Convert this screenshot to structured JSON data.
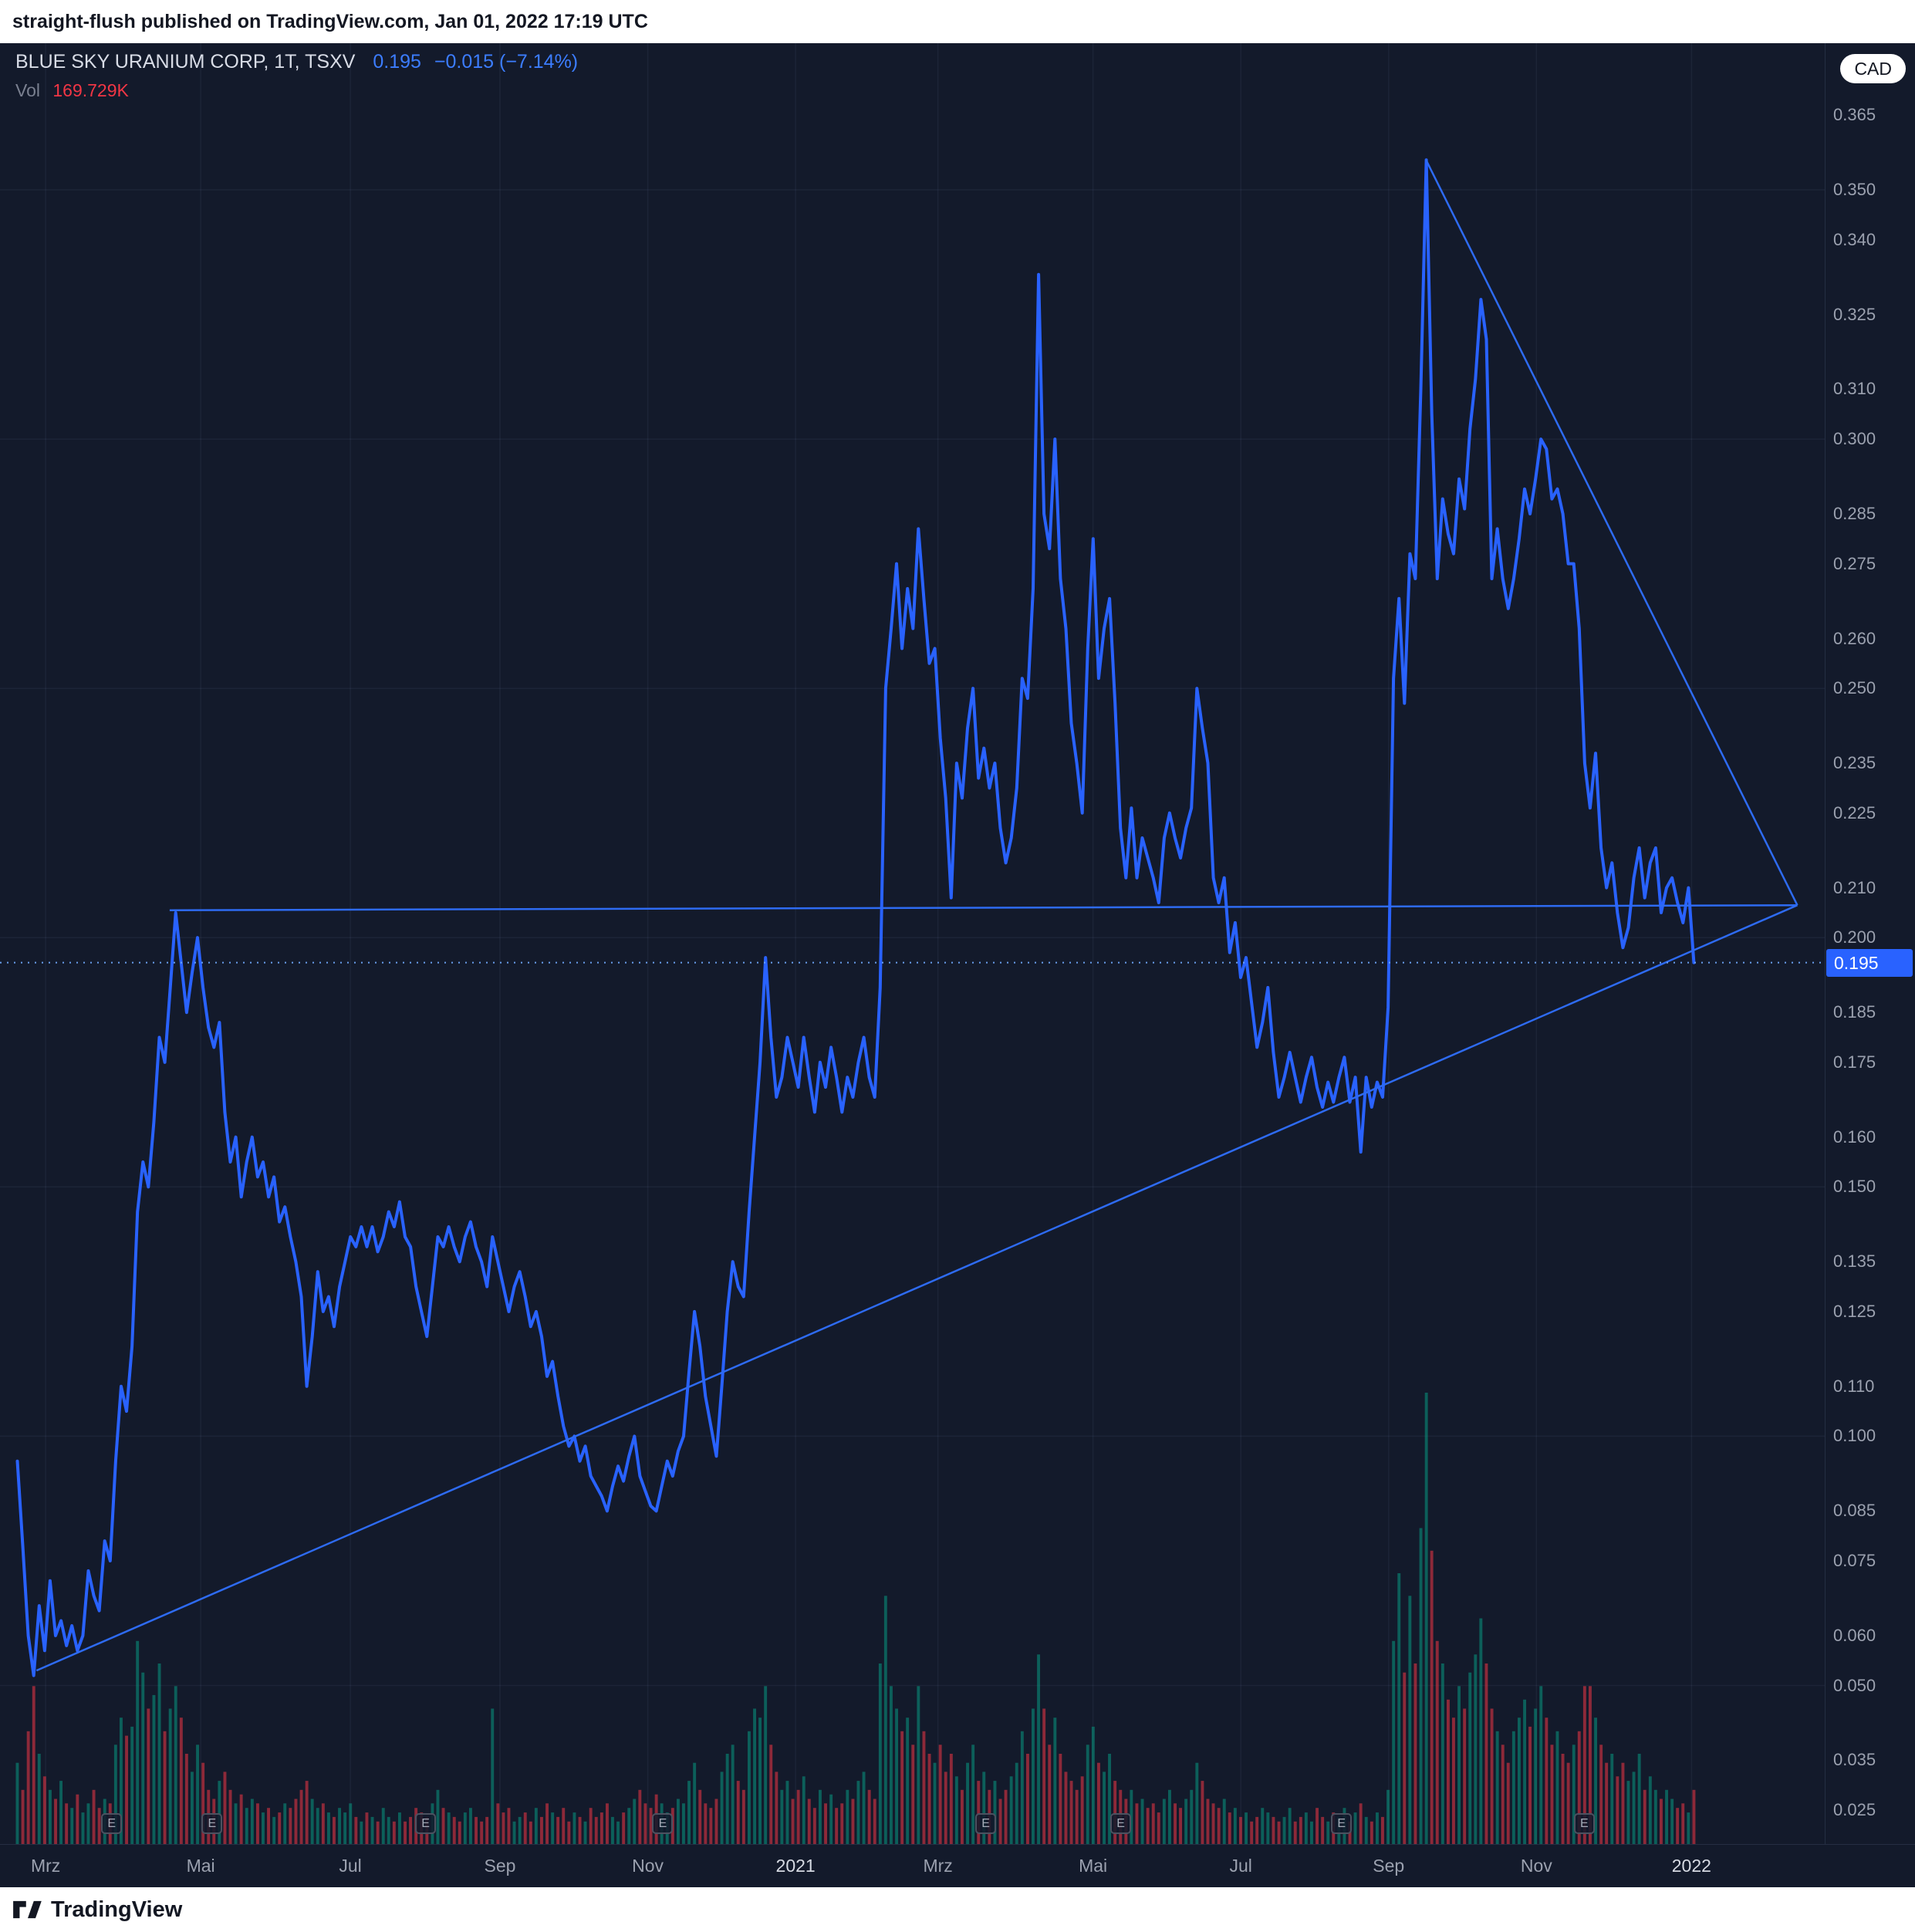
{
  "banner": {
    "author": "straight-flush",
    "rest": "published on TradingView.com, Jan 01, 2022 17:19 UTC"
  },
  "legend": {
    "symbol": "BLUE SKY URANIUM CORP, 1T, TSXV",
    "price": "0.195",
    "change": "−0.015 (−7.14%)",
    "vol_label": "Vol",
    "vol_value": "169.729K"
  },
  "axis": {
    "currency": "CAD",
    "last_price": "0.195",
    "price_labels": [
      "0.365",
      "0.350",
      "0.340",
      "0.325",
      "0.310",
      "0.300",
      "0.285",
      "0.275",
      "0.260",
      "0.250",
      "0.235",
      "0.225",
      "0.210",
      "0.200",
      "0.185",
      "0.175",
      "0.160",
      "0.150",
      "0.135",
      "0.125",
      "0.110",
      "0.100",
      "0.085",
      "0.075",
      "0.060",
      "0.050",
      "0.035",
      "0.025"
    ],
    "months": [
      {
        "label": "Mrz",
        "x": 0.025,
        "year": false
      },
      {
        "label": "Mai",
        "x": 0.11,
        "year": false
      },
      {
        "label": "Jul",
        "x": 0.192,
        "year": false
      },
      {
        "label": "Sep",
        "x": 0.274,
        "year": false
      },
      {
        "label": "Nov",
        "x": 0.355,
        "year": false
      },
      {
        "label": "2021",
        "x": 0.436,
        "year": true
      },
      {
        "label": "Mrz",
        "x": 0.514,
        "year": false
      },
      {
        "label": "Mai",
        "x": 0.599,
        "year": false
      },
      {
        "label": "Jul",
        "x": 0.68,
        "year": false
      },
      {
        "label": "Sep",
        "x": 0.761,
        "year": false
      },
      {
        "label": "Nov",
        "x": 0.842,
        "year": false
      },
      {
        "label": "2022",
        "x": 0.927,
        "year": true
      }
    ],
    "earnings_label": "E",
    "earnings_x": [
      0.061,
      0.116,
      0.233,
      0.363,
      0.54,
      0.614,
      0.735,
      0.868
    ]
  },
  "footer": {
    "brand": "TradingView"
  },
  "chart_data": {
    "type": "line",
    "title": "BLUE SKY URANIUM CORP, 1T, TSXV",
    "symbol": "BLUE SKY URANIUM CORP",
    "exchange": "TSXV",
    "interval": "1T",
    "currency": "CAD",
    "last": 0.195,
    "change": -0.015,
    "change_pct": -7.14,
    "volume_display": "169.729K",
    "line_color": "#2962ff",
    "vol_up_color": "#089981",
    "vol_down_color": "#f23645",
    "ylim": [
      0.0182,
      0.3794
    ],
    "grid_prices": [
      0.05,
      0.1,
      0.15,
      0.2,
      0.25,
      0.3,
      0.35
    ],
    "x_start": 0.0095,
    "x_end": 0.9283,
    "last_price_line": 0.195,
    "trendlines": [
      {
        "x1": 0.02,
        "p1": 0.053,
        "x2": 0.985,
        "p2": 0.2065
      },
      {
        "x1": 0.093,
        "p1": 0.2055,
        "x2": 0.985,
        "p2": 0.2065
      },
      {
        "x1": 0.7815,
        "p1": 0.356,
        "x2": 0.985,
        "p2": 0.2065
      }
    ],
    "prices": [
      0.095,
      0.078,
      0.06,
      0.052,
      0.066,
      0.057,
      0.071,
      0.06,
      0.063,
      0.058,
      0.062,
      0.057,
      0.06,
      0.073,
      0.068,
      0.065,
      0.079,
      0.075,
      0.095,
      0.11,
      0.105,
      0.118,
      0.145,
      0.155,
      0.15,
      0.163,
      0.18,
      0.175,
      0.19,
      0.205,
      0.195,
      0.185,
      0.193,
      0.2,
      0.19,
      0.182,
      0.178,
      0.183,
      0.165,
      0.155,
      0.16,
      0.148,
      0.155,
      0.16,
      0.152,
      0.155,
      0.148,
      0.152,
      0.143,
      0.146,
      0.14,
      0.135,
      0.128,
      0.11,
      0.12,
      0.133,
      0.125,
      0.128,
      0.122,
      0.13,
      0.135,
      0.14,
      0.138,
      0.142,
      0.138,
      0.142,
      0.137,
      0.14,
      0.145,
      0.142,
      0.147,
      0.14,
      0.138,
      0.13,
      0.125,
      0.12,
      0.13,
      0.14,
      0.138,
      0.142,
      0.138,
      0.135,
      0.14,
      0.143,
      0.138,
      0.135,
      0.13,
      0.14,
      0.135,
      0.13,
      0.125,
      0.13,
      0.133,
      0.128,
      0.122,
      0.125,
      0.12,
      0.112,
      0.115,
      0.108,
      0.102,
      0.098,
      0.1,
      0.095,
      0.098,
      0.092,
      0.09,
      0.088,
      0.085,
      0.09,
      0.094,
      0.091,
      0.096,
      0.1,
      0.092,
      0.089,
      0.086,
      0.085,
      0.09,
      0.095,
      0.092,
      0.097,
      0.1,
      0.113,
      0.125,
      0.118,
      0.108,
      0.102,
      0.096,
      0.11,
      0.125,
      0.135,
      0.13,
      0.128,
      0.145,
      0.16,
      0.175,
      0.196,
      0.18,
      0.168,
      0.172,
      0.18,
      0.175,
      0.17,
      0.18,
      0.172,
      0.165,
      0.175,
      0.17,
      0.178,
      0.172,
      0.165,
      0.172,
      0.168,
      0.175,
      0.18,
      0.172,
      0.168,
      0.19,
      0.25,
      0.262,
      0.275,
      0.258,
      0.27,
      0.262,
      0.282,
      0.268,
      0.255,
      0.258,
      0.24,
      0.228,
      0.208,
      0.235,
      0.228,
      0.242,
      0.25,
      0.232,
      0.238,
      0.23,
      0.235,
      0.222,
      0.215,
      0.22,
      0.23,
      0.252,
      0.248,
      0.27,
      0.333,
      0.285,
      0.278,
      0.3,
      0.272,
      0.262,
      0.243,
      0.235,
      0.225,
      0.258,
      0.28,
      0.252,
      0.262,
      0.268,
      0.247,
      0.222,
      0.212,
      0.226,
      0.212,
      0.22,
      0.216,
      0.212,
      0.207,
      0.22,
      0.225,
      0.22,
      0.216,
      0.222,
      0.226,
      0.25,
      0.242,
      0.235,
      0.212,
      0.207,
      0.212,
      0.197,
      0.203,
      0.192,
      0.196,
      0.187,
      0.178,
      0.183,
      0.19,
      0.177,
      0.168,
      0.172,
      0.177,
      0.172,
      0.167,
      0.172,
      0.176,
      0.17,
      0.166,
      0.171,
      0.167,
      0.172,
      0.176,
      0.167,
      0.172,
      0.157,
      0.172,
      0.166,
      0.171,
      0.168,
      0.186,
      0.252,
      0.268,
      0.247,
      0.277,
      0.272,
      0.31,
      0.356,
      0.305,
      0.272,
      0.288,
      0.281,
      0.277,
      0.292,
      0.286,
      0.302,
      0.312,
      0.328,
      0.32,
      0.272,
      0.282,
      0.272,
      0.266,
      0.272,
      0.28,
      0.29,
      0.285,
      0.292,
      0.3,
      0.298,
      0.288,
      0.29,
      0.285,
      0.275,
      0.275,
      0.262,
      0.235,
      0.226,
      0.237,
      0.218,
      0.21,
      0.215,
      0.205,
      0.198,
      0.202,
      0.212,
      0.218,
      0.208,
      0.215,
      0.218,
      0.205,
      0.21,
      0.212,
      0.207,
      0.203,
      0.21,
      0.195
    ],
    "volumes_rel": [
      18,
      12,
      25,
      35,
      20,
      15,
      12,
      10,
      14,
      9,
      8,
      11,
      7,
      9,
      12,
      8,
      10,
      9,
      22,
      28,
      24,
      26,
      45,
      38,
      30,
      33,
      40,
      25,
      30,
      35,
      28,
      20,
      16,
      22,
      18,
      12,
      10,
      14,
      16,
      12,
      9,
      11,
      8,
      10,
      9,
      7,
      8,
      6,
      7,
      9,
      8,
      10,
      12,
      14,
      10,
      8,
      9,
      7,
      6,
      8,
      7,
      9,
      6,
      5,
      7,
      6,
      5,
      8,
      6,
      5,
      7,
      5,
      6,
      8,
      7,
      6,
      9,
      12,
      8,
      7,
      6,
      5,
      7,
      8,
      6,
      5,
      6,
      30,
      9,
      7,
      8,
      5,
      6,
      7,
      5,
      8,
      6,
      9,
      7,
      6,
      8,
      5,
      7,
      6,
      5,
      8,
      6,
      7,
      9,
      6,
      5,
      7,
      8,
      10,
      12,
      9,
      8,
      11,
      9,
      7,
      8,
      10,
      9,
      14,
      18,
      12,
      9,
      8,
      10,
      16,
      20,
      22,
      14,
      12,
      25,
      30,
      28,
      35,
      22,
      16,
      12,
      14,
      10,
      12,
      15,
      10,
      8,
      12,
      9,
      11,
      8,
      9,
      12,
      10,
      14,
      16,
      12,
      10,
      40,
      55,
      35,
      30,
      25,
      28,
      22,
      35,
      25,
      20,
      18,
      22,
      16,
      20,
      15,
      12,
      18,
      22,
      14,
      16,
      12,
      14,
      10,
      12,
      15,
      18,
      25,
      20,
      30,
      42,
      30,
      22,
      28,
      20,
      16,
      14,
      12,
      15,
      22,
      26,
      18,
      16,
      20,
      14,
      12,
      10,
      12,
      9,
      10,
      8,
      9,
      7,
      10,
      12,
      9,
      8,
      10,
      12,
      18,
      14,
      10,
      9,
      8,
      10,
      7,
      8,
      6,
      7,
      5,
      6,
      8,
      7,
      6,
      5,
      6,
      8,
      5,
      6,
      7,
      5,
      8,
      6,
      5,
      7,
      6,
      8,
      5,
      7,
      9,
      6,
      5,
      7,
      6,
      12,
      45,
      60,
      38,
      55,
      40,
      70,
      100,
      65,
      45,
      40,
      32,
      28,
      35,
      30,
      38,
      42,
      50,
      40,
      30,
      25,
      22,
      18,
      25,
      28,
      32,
      26,
      30,
      35,
      28,
      22,
      25,
      20,
      18,
      22,
      25,
      35,
      35,
      28,
      22,
      18,
      20,
      15,
      18,
      14,
      16,
      20,
      12,
      15,
      12,
      10,
      12,
      10,
      8,
      9,
      7,
      12
    ]
  }
}
